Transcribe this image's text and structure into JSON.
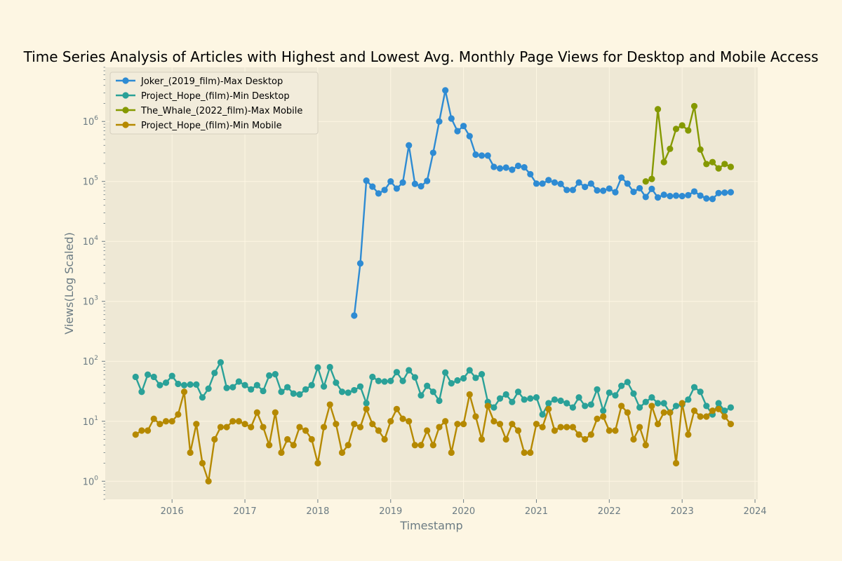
{
  "chart_data": {
    "type": "line",
    "title": "Time Series Analysis of Articles with Highest and Lowest Avg. Monthly Page Views for Desktop and Mobile Access",
    "xlabel": "Timestamp",
    "ylabel": "Views(Log Scaled)",
    "yscale": "log",
    "xlim": [
      "2015-02",
      "2024-01-15"
    ],
    "ylim": [
      0.5,
      8000000
    ],
    "x_ticks": [
      "2016",
      "2017",
      "2018",
      "2019",
      "2020",
      "2021",
      "2022",
      "2023",
      "2024"
    ],
    "y_ticks": [
      1,
      10,
      100,
      1000,
      10000,
      100000,
      1000000
    ],
    "grid": true,
    "legend_position": "top-left",
    "x_start": "2015-07",
    "series": [
      {
        "name": "Joker_(2019_film)-Max Desktop",
        "color": "#2e8bd3",
        "start": "2018-07",
        "values": [
          580,
          4300,
          103000,
          82000,
          63000,
          72000,
          100000,
          76000,
          96000,
          400000,
          91000,
          83000,
          102000,
          300000,
          1000000,
          3300000,
          1120000,
          690000,
          840000,
          570000,
          280000,
          270000,
          270000,
          175000,
          165000,
          170000,
          157000,
          182000,
          172000,
          132000,
          92000,
          92000,
          105000,
          96000,
          91000,
          72000,
          72000,
          96000,
          81000,
          92000,
          71000,
          70000,
          76000,
          66000,
          116000,
          92000,
          67000,
          77000,
          55000,
          75000,
          54000,
          60000,
          57000,
          58000,
          57000,
          59000,
          68000,
          58000,
          52000,
          51000,
          64000,
          65000,
          66000
        ]
      },
      {
        "name": "Project_Hope_(film)-Min Desktop",
        "color": "#2aa198",
        "start": "2015-07",
        "values": [
          55,
          31,
          60,
          55,
          40,
          44,
          57,
          42,
          40,
          41,
          41,
          25,
          35,
          64,
          96,
          36,
          37,
          46,
          40,
          34,
          40,
          32,
          58,
          61,
          31,
          37,
          29,
          28,
          34,
          40,
          79,
          38,
          80,
          44,
          31,
          30,
          33,
          38,
          20,
          55,
          47,
          46,
          47,
          66,
          47,
          71,
          54,
          27,
          39,
          31,
          22,
          65,
          43,
          48,
          52,
          71,
          53,
          61,
          21,
          17,
          24,
          28,
          21,
          31,
          23,
          24,
          25,
          13,
          20,
          23,
          22,
          20,
          17,
          25,
          18,
          19,
          34,
          15,
          30,
          27,
          39,
          45,
          29,
          17,
          21,
          25,
          20,
          20,
          14,
          18,
          19,
          23,
          37,
          31,
          18,
          13,
          20,
          15,
          17
        ]
      },
      {
        "name": "The_Whale_(2022_film)-Max Mobile",
        "color": "#859900",
        "start": "2022-07",
        "values": [
          100000,
          110000,
          1600000,
          210000,
          350000,
          750000,
          860000,
          710000,
          1800000,
          340000,
          195000,
          210000,
          165000,
          195000,
          175000
        ]
      },
      {
        "name": "Project_Hope_(film)-Min Mobile",
        "color": "#b58900",
        "start": "2015-07",
        "values": [
          6,
          7,
          7,
          11,
          9,
          10,
          10,
          13,
          31,
          3,
          9,
          2,
          1,
          5,
          8,
          8,
          10,
          10,
          9,
          8,
          14,
          8,
          4,
          14,
          3,
          5,
          4,
          8,
          7,
          5,
          2,
          8,
          19,
          9,
          3,
          4,
          9,
          8,
          16,
          9,
          7,
          5,
          10,
          16,
          11,
          10,
          4,
          4,
          7,
          4,
          8,
          10,
          3,
          9,
          9,
          28,
          12,
          5,
          18,
          10,
          9,
          5,
          9,
          7,
          3,
          3,
          9,
          8,
          16,
          7,
          8,
          8,
          8,
          6,
          5,
          6,
          11,
          12,
          7,
          7,
          18,
          14,
          5,
          8,
          4,
          18,
          9,
          14,
          14,
          2,
          20,
          6,
          15,
          12,
          12,
          15,
          16,
          12,
          9
        ]
      }
    ]
  }
}
